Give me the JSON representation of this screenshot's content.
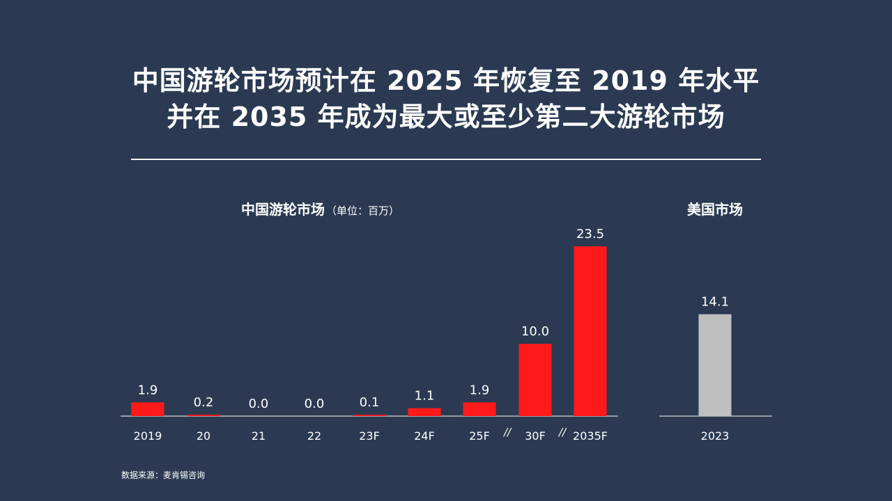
{
  "title": {
    "line1": "中国游轮市场预计在 2025 年恢复至 2019 年水平",
    "line2": "并在 2035 年成为最大或至少第二大游轮市场"
  },
  "source": "数据来源：麦肯锡咨询",
  "colors": {
    "background": "#2b3a52",
    "china_bar": "#ff1a1a",
    "us_bar": "#bfbfbf",
    "text": "#ffffff"
  },
  "chart_data": [
    {
      "type": "bar",
      "title": "中国游轮市场",
      "unit_note": "（单位：百万）",
      "categories": [
        "2019",
        "20",
        "21",
        "22",
        "23F",
        "24F",
        "25F",
        "30F",
        "2035F"
      ],
      "values": [
        1.9,
        0.2,
        0.0,
        0.0,
        0.1,
        1.1,
        1.9,
        10.0,
        23.5
      ],
      "data_labels": [
        "1.9",
        "0.2",
        "0.0",
        "0.0",
        "0.1",
        "1.1",
        "1.9",
        "10.0",
        "23.5"
      ],
      "axis_break_marks": [
        "//",
        "//"
      ],
      "ylim": [
        0,
        23.5
      ],
      "grid": false
    },
    {
      "type": "bar",
      "title": "美国市场",
      "categories": [
        "2023"
      ],
      "values": [
        14.1
      ],
      "data_labels": [
        "14.1"
      ],
      "ylim": [
        0,
        23.5
      ],
      "grid": false
    }
  ]
}
